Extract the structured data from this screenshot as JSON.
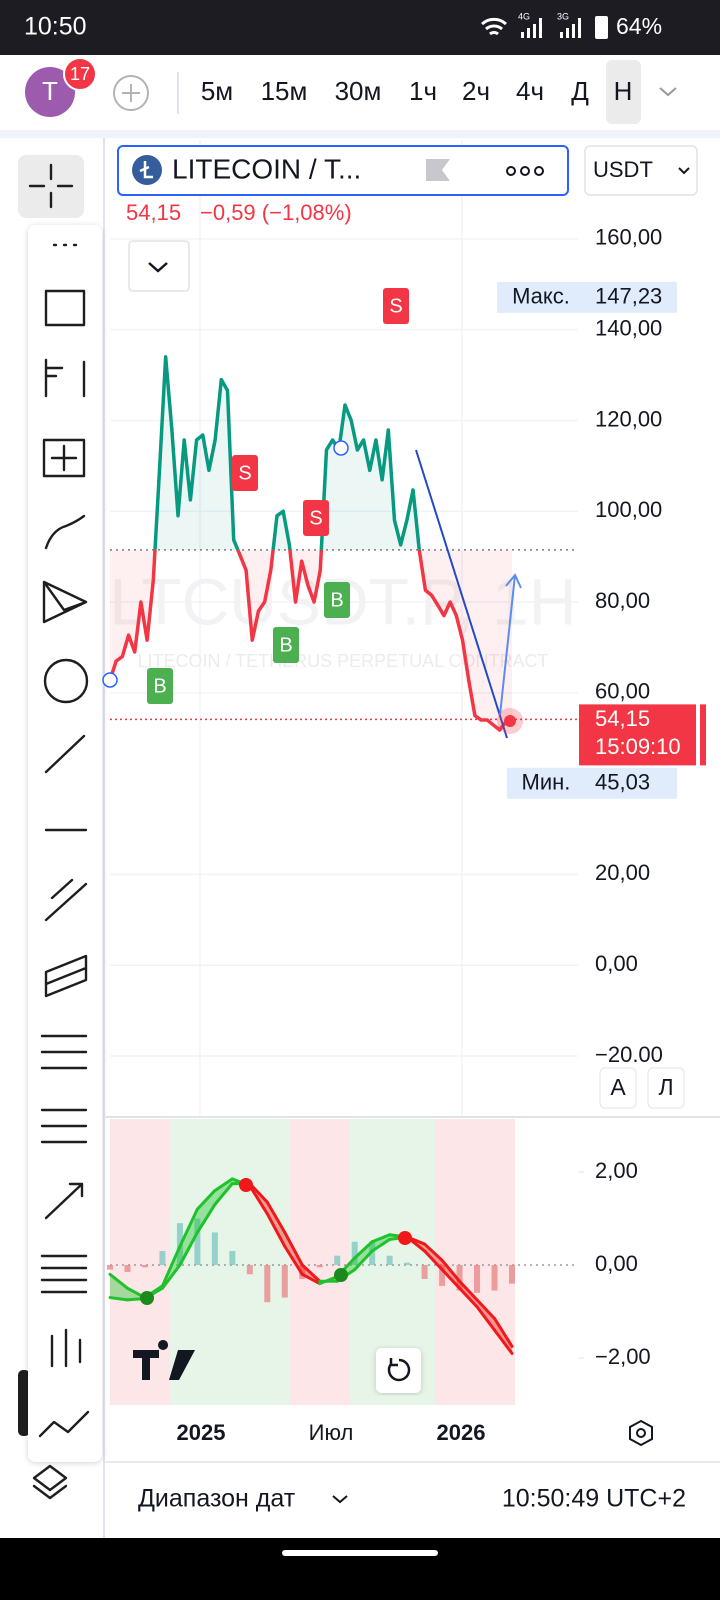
{
  "status_bar": {
    "time": "10:50",
    "net_a": "4G",
    "net_b": "3G",
    "battery": "64%"
  },
  "toolbar": {
    "avatar": "T",
    "notifications": "17",
    "intervals": [
      "5м",
      "15м",
      "30м",
      "1ч",
      "2ч",
      "4ч",
      "Д",
      "Н"
    ]
  },
  "symbol": {
    "name": "LITECOIN / T...",
    "currency": "USDT",
    "price": "54,15",
    "change": "−0,59 (−1,08%)"
  },
  "watermark": {
    "ticker": "LTCUSDT.P, 1H",
    "description": "LITECOIN / TETHERUS PERPETUAL CONTRACT"
  },
  "chart_data": [
    {
      "type": "line",
      "values": [
        62.8,
        67,
        68,
        72.7,
        69,
        80,
        71.6,
        84.8,
        109,
        134,
        118,
        99,
        115.7,
        102.5,
        115.7,
        116.8,
        109,
        115.7,
        129,
        126.6,
        93.7,
        90.4,
        87,
        71.6,
        78,
        80,
        87,
        99,
        100,
        92.6,
        80,
        89,
        83.7,
        80,
        87,
        113.5,
        115.7,
        113.5,
        123.4,
        120,
        113.5,
        115.7,
        109,
        115.7,
        106.9,
        117.9,
        98,
        92.6,
        98,
        104.7,
        91.5,
        82.6,
        81.5,
        79.3,
        77,
        80,
        77,
        71.6,
        62.8,
        55,
        54,
        54,
        52.9,
        51.8,
        53.6,
        54.15
      ],
      "color_up": "#089981",
      "color_down": "#f23645",
      "baseline": 91.5,
      "ylim": [
        -33,
        182
      ],
      "yticks": [
        {
          "value": 160,
          "label": "160,00"
        },
        {
          "value": 140,
          "label": "140,00"
        },
        {
          "value": 120,
          "label": "120,00"
        },
        {
          "value": 100,
          "label": "100,00"
        },
        {
          "value": 80,
          "label": "80,00"
        },
        {
          "value": 60,
          "label": "60,00"
        },
        {
          "value": 20,
          "label": "20,00"
        },
        {
          "value": 0,
          "label": "0,00"
        },
        {
          "value": -20,
          "label": "−20,00"
        }
      ],
      "grid": true,
      "max": {
        "label": "Макс.",
        "value": 147.23,
        "value_label": "147,23"
      },
      "min": {
        "label": "Мин.",
        "value": 45.03,
        "value_label": "45,03"
      },
      "last": {
        "value": 54.15,
        "value_label": "54,15",
        "countdown": "15:09:10"
      },
      "signals": [
        "B",
        "S",
        "S",
        "B",
        "B",
        "S"
      ],
      "buttons": [
        "A",
        "Л"
      ]
    },
    {
      "type": "oscillator",
      "series": [
        {
          "values": [
            -0.2,
            -0.5,
            -0.7,
            -0.45,
            0.4,
            1.2,
            1.6,
            1.85,
            1.7,
            1.1,
            0.4,
            -0.2,
            -0.4,
            -0.25,
            0.15,
            0.5,
            0.65,
            0.6,
            0.3,
            -0.1,
            -0.5,
            -0.9,
            -1.4,
            -1.9
          ]
        },
        {
          "values": [
            -0.7,
            -0.75,
            -0.72,
            -0.5,
            0.0,
            0.7,
            1.3,
            1.75,
            1.75,
            1.35,
            0.7,
            0.0,
            -0.35,
            -0.35,
            -0.1,
            0.3,
            0.55,
            0.6,
            0.45,
            0.1,
            -0.35,
            -0.75,
            -1.15,
            -1.75
          ]
        }
      ],
      "histogram": [
        -0.1,
        -0.15,
        -0.05,
        0.3,
        0.9,
        1.0,
        0.7,
        0.3,
        -0.2,
        -0.8,
        -0.7,
        -0.3,
        -0.05,
        0.2,
        0.5,
        0.5,
        0.2,
        0.05,
        -0.3,
        -0.45,
        -0.55,
        -0.6,
        -0.55,
        -0.4
      ],
      "color_up": "#1fc22b",
      "color_down": "#f01818",
      "ylim": [
        -3.01,
        3.16
      ],
      "yticks": [
        {
          "value": 2,
          "label": "2,00"
        },
        {
          "value": 0,
          "label": "0,00"
        },
        {
          "value": -2,
          "label": "−2,00"
        }
      ],
      "x_labels": [
        "2025",
        "Июл",
        "2026"
      ]
    }
  ],
  "footer": {
    "range": "Диапазон дат",
    "clock": "10:50:49 UTC+2"
  }
}
